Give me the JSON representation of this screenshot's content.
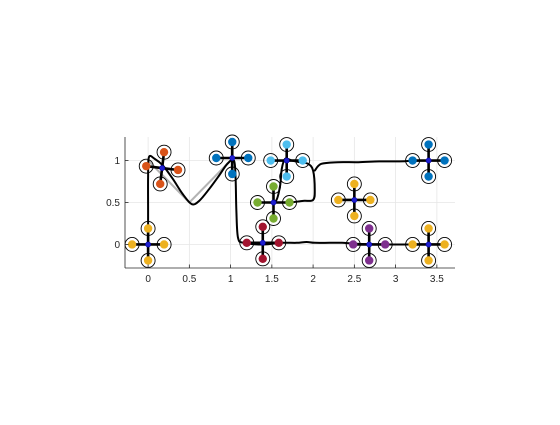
{
  "chart_data": {
    "type": "line",
    "xlim": [
      -0.28,
      3.72
    ],
    "ylim": [
      -0.28,
      1.28
    ],
    "grid": true,
    "equal_aspect": true,
    "x_ticks": [
      {
        "value": 0,
        "label": "0"
      },
      {
        "value": 0.5,
        "label": "0.5"
      },
      {
        "value": 1,
        "label": "1"
      },
      {
        "value": 1.5,
        "label": "1.5"
      },
      {
        "value": 2,
        "label": "2"
      },
      {
        "value": 2.5,
        "label": "2.5"
      },
      {
        "value": 3,
        "label": "3"
      },
      {
        "value": 3.5,
        "label": "3.5"
      }
    ],
    "y_ticks": [
      {
        "value": 0,
        "label": "0"
      },
      {
        "value": 0.5,
        "label": "0.5"
      },
      {
        "value": 1,
        "label": "1"
      }
    ],
    "series": [
      {
        "role": "reference-path",
        "color": "#b4b4b4",
        "points": [
          [
            0,
            1
          ],
          [
            0.5,
            0.5
          ],
          [
            1,
            1
          ]
        ]
      },
      {
        "role": "trajectory",
        "color": "#000000",
        "points": [
          [
            0,
            0
          ],
          [
            0,
            0.4
          ],
          [
            0,
            0.8
          ],
          [
            0.01,
            1.04
          ],
          [
            0.08,
            1.02
          ],
          [
            0.18,
            0.94
          ],
          [
            0.3,
            0.78
          ],
          [
            0.42,
            0.6
          ],
          [
            0.53,
            0.48
          ],
          [
            0.62,
            0.52
          ],
          [
            0.74,
            0.66
          ],
          [
            0.86,
            0.82
          ],
          [
            0.96,
            0.96
          ],
          [
            1.04,
            1.0
          ],
          [
            1.06,
            0.8
          ],
          [
            1.07,
            0.4
          ],
          [
            1.09,
            0.08
          ],
          [
            1.16,
            0.02
          ],
          [
            1.4,
            0.0
          ],
          [
            1.62,
            0.02
          ],
          [
            1.8,
            0.02
          ],
          [
            1.92,
            0.03
          ],
          [
            2.02,
            0.02
          ],
          [
            2.2,
            0.02
          ],
          [
            2.35,
            0.02
          ],
          [
            2.5,
            0.01
          ],
          [
            2.8,
            0.0
          ],
          [
            3.2,
            0.0
          ],
          [
            3.58,
            0.0
          ]
        ]
      },
      {
        "role": "trajectory-branch",
        "color": "#000000",
        "points": [
          [
            1.45,
            0.5
          ],
          [
            1.55,
            0.52
          ],
          [
            1.6,
            0.7
          ],
          [
            1.62,
            0.9
          ],
          [
            1.66,
            1.02
          ],
          [
            1.74,
            1.0
          ],
          [
            1.84,
            0.98
          ],
          [
            1.94,
            0.96
          ],
          [
            2.0,
            0.88
          ],
          [
            2.02,
            0.65
          ],
          [
            2.0,
            0.53
          ],
          [
            1.88,
            0.52
          ],
          [
            1.72,
            0.5
          ],
          [
            1.62,
            0.5
          ]
        ]
      },
      {
        "role": "trajectory-branch",
        "color": "#000000",
        "points": [
          [
            2.02,
            0.88
          ],
          [
            2.1,
            0.96
          ],
          [
            2.3,
            0.98
          ],
          [
            2.55,
            0.98
          ],
          [
            2.8,
            0.99
          ],
          [
            3.05,
            0.99
          ],
          [
            3.3,
            1.0
          ],
          [
            3.45,
            1.0
          ]
        ]
      }
    ],
    "quadrotors": [
      {
        "x": 0.0,
        "y": 0.0,
        "color": "#EDB120",
        "angle": 0
      },
      {
        "x": 0.17,
        "y": 0.91,
        "color": "#D95319",
        "angle": 0.12
      },
      {
        "x": 1.02,
        "y": 1.03,
        "color": "#0072BD",
        "angle": 0
      },
      {
        "x": 1.39,
        "y": 0.02,
        "color": "#A2142F",
        "angle": 0
      },
      {
        "x": 1.68,
        "y": 1.0,
        "color": "#4DBEEE",
        "angle": 0
      },
      {
        "x": 1.52,
        "y": 0.5,
        "color": "#77AC30",
        "angle": 0
      },
      {
        "x": 2.5,
        "y": 0.53,
        "color": "#EDB120",
        "angle": 0
      },
      {
        "x": 2.68,
        "y": 0.0,
        "color": "#7E2F8E",
        "angle": 0
      },
      {
        "x": 3.4,
        "y": 1.0,
        "color": "#0072BD",
        "angle": 0
      },
      {
        "x": 3.4,
        "y": 0.0,
        "color": "#EDB120",
        "angle": 0
      }
    ],
    "quadrotor_style": {
      "arm_color": "#000000",
      "body_color": "#1f1fcf",
      "ring_color": "#000000"
    }
  }
}
